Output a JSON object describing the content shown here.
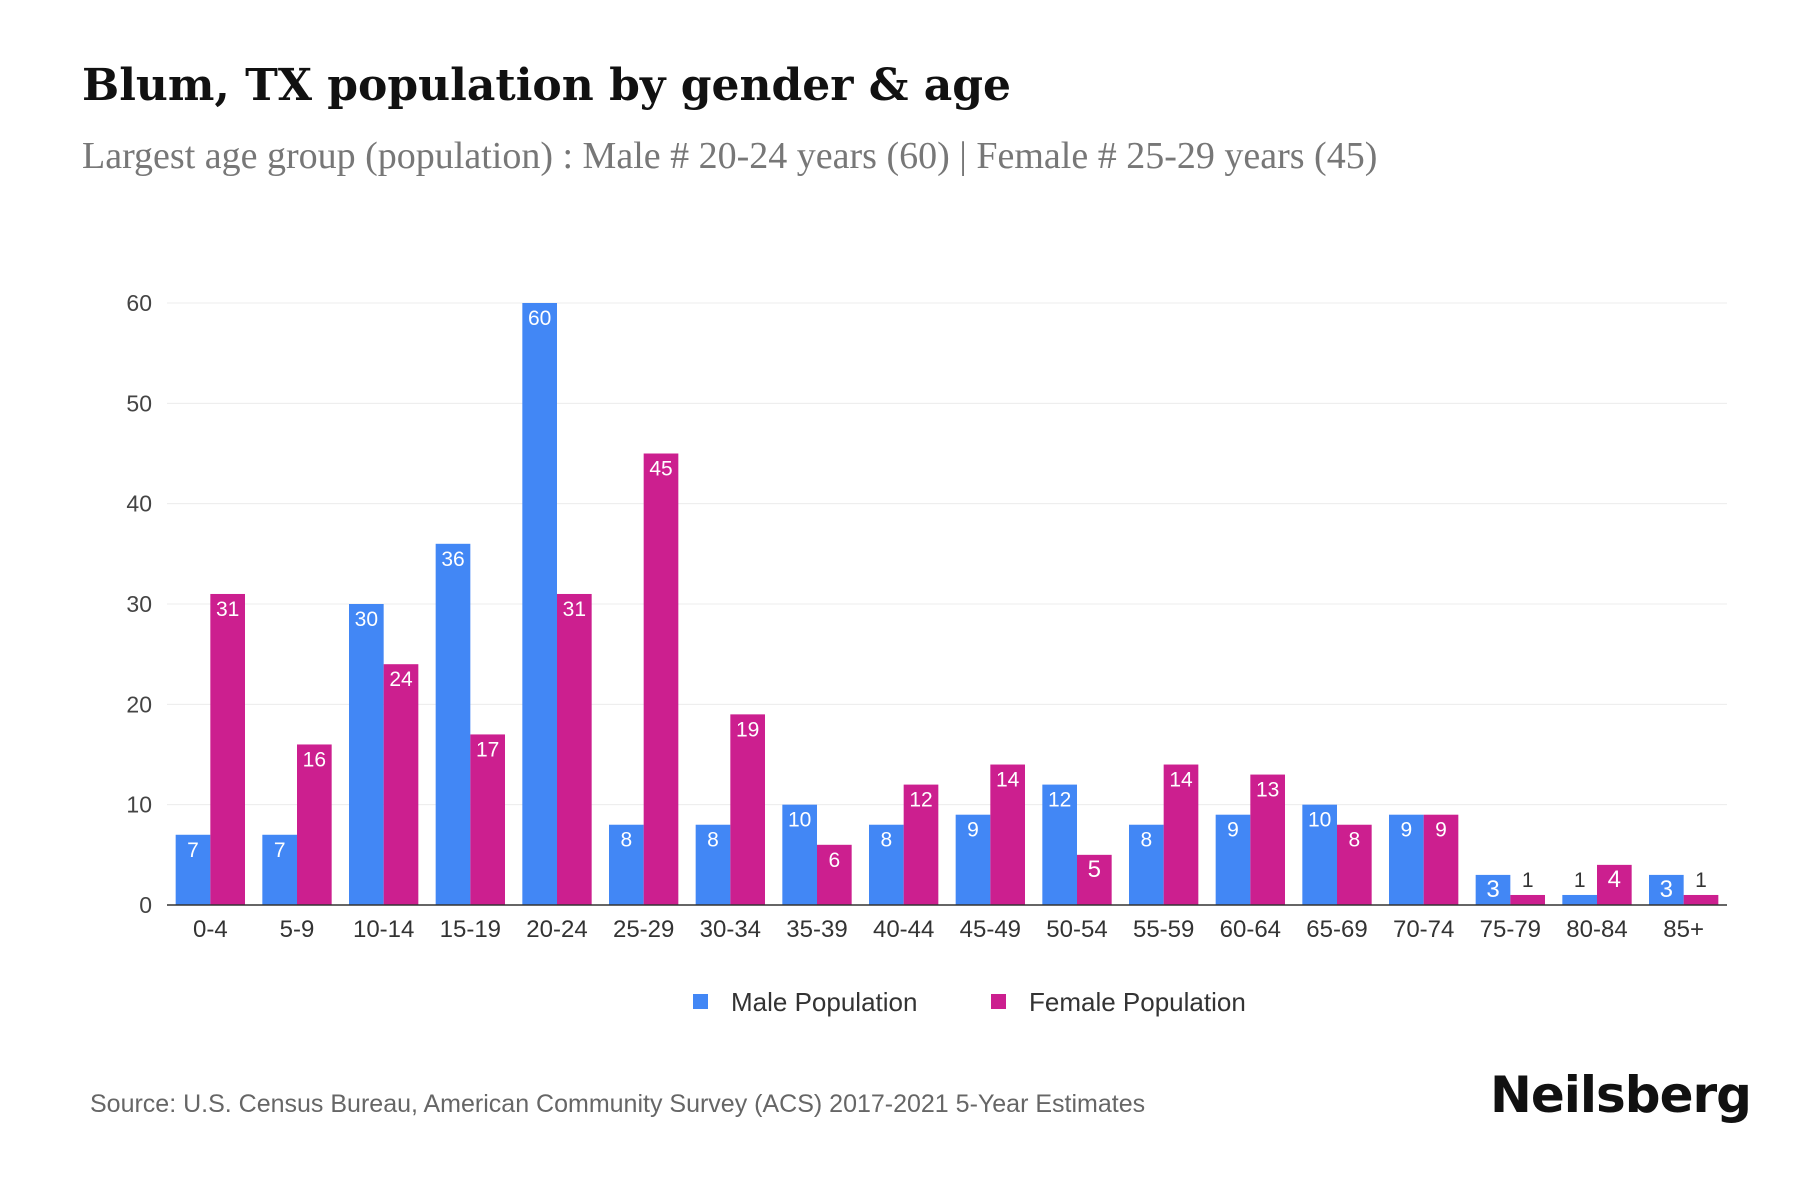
{
  "title": "Blum, TX population by gender & age",
  "subtitle": "Largest age group (population) : Male # 20-24 years (60) | Female # 25-29 years (45)",
  "source": "Source: U.S. Census Bureau, American Community Survey (ACS) 2017-2021 5-Year Estimates",
  "logo": "Neilsberg",
  "chart_data": {
    "type": "bar",
    "categories": [
      "0-4",
      "5-9",
      "10-14",
      "15-19",
      "20-24",
      "25-29",
      "30-34",
      "35-39",
      "40-44",
      "45-49",
      "50-54",
      "55-59",
      "60-64",
      "65-69",
      "70-74",
      "75-79",
      "80-84",
      "85+"
    ],
    "series": [
      {
        "name": "Male Population",
        "color": "#4287f5",
        "values": [
          7,
          7,
          30,
          36,
          60,
          8,
          8,
          10,
          8,
          9,
          12,
          8,
          9,
          10,
          9,
          3,
          1,
          3
        ]
      },
      {
        "name": "Female Population",
        "color": "#cc1f8f",
        "values": [
          31,
          16,
          24,
          17,
          31,
          45,
          19,
          6,
          12,
          14,
          5,
          14,
          13,
          8,
          9,
          1,
          4,
          1
        ]
      }
    ],
    "yticks": [
      0,
      10,
      20,
      30,
      40,
      50,
      60
    ],
    "ylim": [
      0,
      60
    ],
    "grid": true,
    "legend": "bottom-center",
    "xlabel": "",
    "ylabel": ""
  }
}
